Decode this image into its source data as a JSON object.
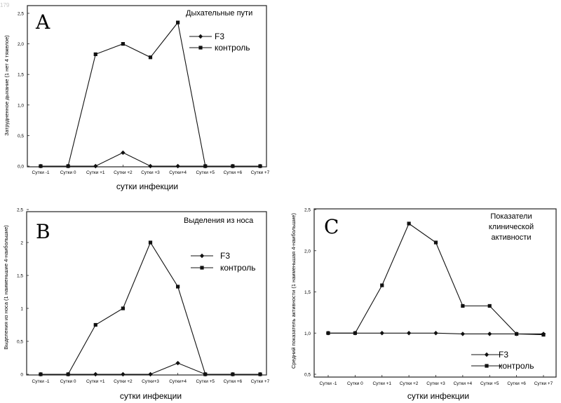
{
  "corner_text": "179",
  "legend": {
    "f3": "F3",
    "control": "контроль"
  },
  "colors": {
    "line": "#111111",
    "frame": "#222222"
  },
  "chart_data": [
    {
      "type": "line",
      "panel": "A",
      "title": "Дыхательные пути",
      "ylabel": "Затрудненное дыхание (1   нет   4  тяжелое)",
      "xlabel": "сутки инфекции",
      "categories": [
        "Сутки -1",
        "Сутки 0",
        "Сутки +1",
        "Сутки +2",
        "Сутки +3",
        "Сутки+4",
        "Сутки +5",
        "Сутки +6",
        "Сутки +7"
      ],
      "yticks": [
        "0,0",
        "0,5",
        "1,0",
        "1,5",
        "2,0",
        "2,5"
      ],
      "ylim": [
        0,
        2.5
      ],
      "legend_position": "right",
      "series": [
        {
          "name": "F3",
          "marker": "diamond",
          "values": [
            0,
            0,
            0,
            0.22,
            0,
            0,
            0,
            0,
            0
          ]
        },
        {
          "name": "контроль",
          "marker": "square",
          "values": [
            0,
            0,
            1.83,
            2.0,
            1.78,
            2.35,
            0,
            0,
            0
          ]
        }
      ]
    },
    {
      "type": "line",
      "panel": "B",
      "title": "Выделения из носа",
      "ylabel": "Выделения из носа (1 наименьшие  4-наибольшие)",
      "xlabel": "сутки инфекции",
      "categories": [
        "Сутки -1",
        "Сутки 0",
        "Сутки +1",
        "Сутки +2",
        "Сутки+3",
        "Сутки+4",
        "Сутки +5",
        "Сутки +6",
        "Сутки +7"
      ],
      "yticks": [
        "0",
        "0,5",
        "1",
        "1,5",
        "2",
        "2,5"
      ],
      "ylim": [
        0,
        2.5
      ],
      "legend_position": "right",
      "series": [
        {
          "name": "F3",
          "marker": "diamond",
          "values": [
            0,
            0,
            0,
            0,
            0,
            0.17,
            0,
            0,
            0
          ]
        },
        {
          "name": "контроль",
          "marker": "square",
          "values": [
            0,
            0,
            0.75,
            1.0,
            2.0,
            1.33,
            0,
            0,
            0
          ]
        }
      ]
    },
    {
      "type": "line",
      "panel": "C",
      "title": [
        "Показатели",
        "клинической",
        "активности"
      ],
      "ylabel": "Средний показатель активности (1 наименьшая  4-наибольшие)",
      "xlabel": "сутки инфекции",
      "categories": [
        "Сутки -1",
        "Сутки 0",
        "Сутки +1",
        "Сутки +2",
        "Сутки +3",
        "Сутки +4",
        "Сутки +5",
        "Сутки +6",
        "Сутки +7"
      ],
      "yticks": [
        "0,5",
        "1,0",
        "1,5",
        "2,0",
        "2,5"
      ],
      "ylim": [
        0.5,
        2.5
      ],
      "legend_position": "bottom-right",
      "series": [
        {
          "name": "F3",
          "marker": "diamond",
          "values": [
            1.0,
            1.0,
            1.0,
            1.0,
            1.0,
            0.99,
            0.99,
            0.99,
            0.99
          ]
        },
        {
          "name": "контроль",
          "marker": "square",
          "values": [
            1.0,
            1.0,
            1.58,
            2.33,
            2.1,
            1.33,
            1.33,
            0.99,
            0.98
          ]
        }
      ]
    }
  ]
}
